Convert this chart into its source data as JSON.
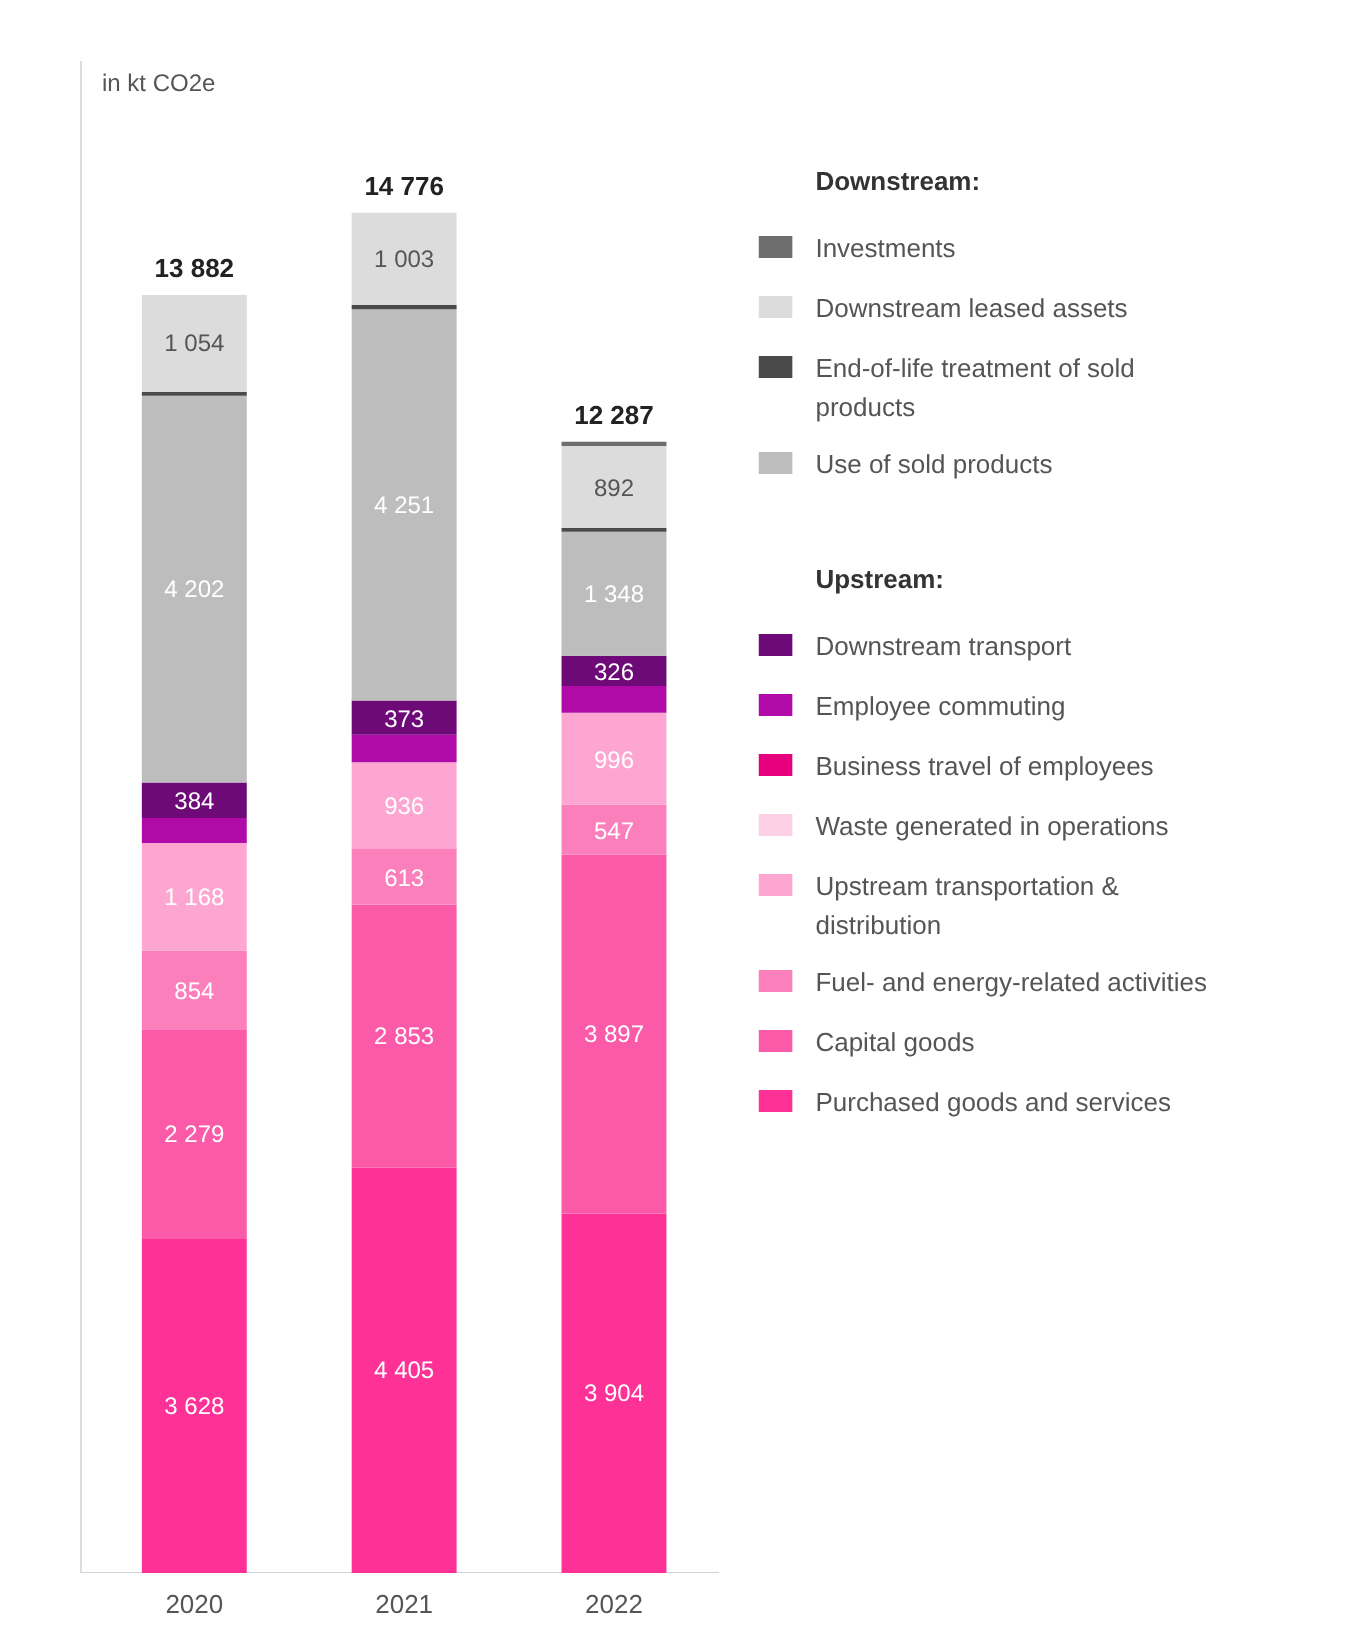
{
  "chart_data": {
    "type": "bar",
    "stacked": true,
    "ylabel": "in kt CO2e",
    "categories": [
      "2020",
      "2021",
      "2022"
    ],
    "series": [
      {
        "name": "Purchased goods and services",
        "color": "#fe3296",
        "values": [
          3628,
          4405,
          3904
        ],
        "value_labels": [
          "3 628",
          "4 405",
          "3 904"
        ]
      },
      {
        "name": "Capital goods",
        "color": "#fb5aa8",
        "values": [
          2279,
          2853,
          3897
        ],
        "value_labels": [
          "2 279",
          "2 853",
          "3 897"
        ]
      },
      {
        "name": "Fuel- and energy-related activities",
        "color": "#fb7fbb",
        "values": [
          854,
          613,
          547
        ],
        "value_labels": [
          "854",
          "613",
          "547"
        ]
      },
      {
        "name": "Upstream transportation & distribution",
        "color": "#fda6d2",
        "values": [
          1168,
          936,
          996
        ],
        "value_labels": [
          "1 168",
          "936",
          "996"
        ]
      },
      {
        "name": "Waste generated in operations",
        "color": "#fdd0e6",
        "values": [
          null,
          null,
          null
        ]
      },
      {
        "name": "Business travel of employees",
        "color": "#e6007e",
        "values": [
          null,
          null,
          null
        ]
      },
      {
        "name": "Employee commuting",
        "color": "#b00aa8",
        "values": [
          273,
          297,
          292
        ]
      },
      {
        "name": "Downstream transport",
        "color": "#6e0a78",
        "values": [
          384,
          373,
          326
        ],
        "value_labels": [
          "384",
          "373",
          "326"
        ]
      },
      {
        "name": "Use of sold products",
        "color": "#bdbdbd",
        "values": [
          4202,
          4251,
          1348
        ],
        "value_labels": [
          "4 202",
          "4 251",
          "1 348"
        ]
      },
      {
        "name": "End-of-life treatment of sold products",
        "color": "#4a4a4a",
        "values": [
          40,
          45,
          40
        ]
      },
      {
        "name": "Downstream leased assets",
        "color": "#dcdcdc",
        "values": [
          1054,
          1003,
          892
        ],
        "value_labels": [
          "1 054",
          "1 003",
          "892"
        ]
      },
      {
        "name": "Investments",
        "color": "#6e6e6e",
        "values": [
          0,
          0,
          45
        ]
      }
    ],
    "totals": [
      "13 882",
      "14 776",
      "12 287"
    ],
    "annotations": [
      "Downstream:",
      "Upstream:"
    ],
    "legend": "right",
    "grid": false,
    "tick_labels": "x"
  }
}
